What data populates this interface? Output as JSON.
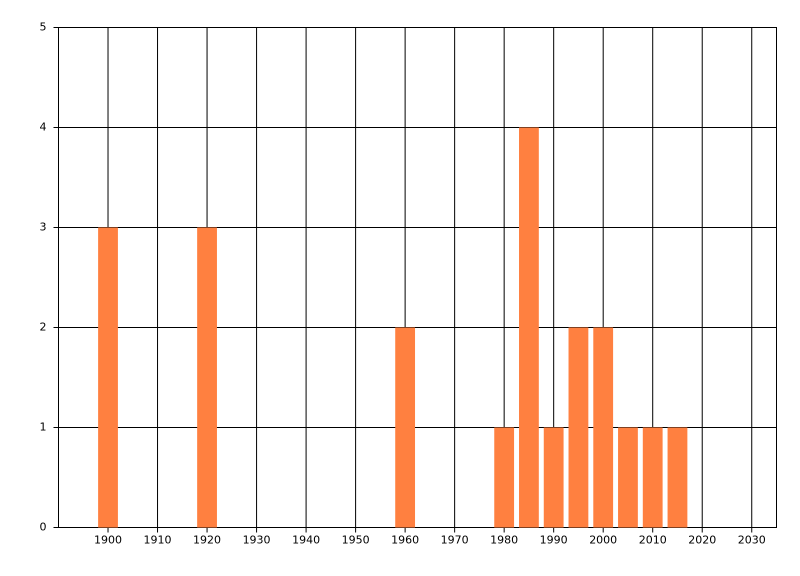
{
  "chart_data": {
    "type": "bar",
    "x": [
      1900,
      1920,
      1960,
      1980,
      1985,
      1990,
      1995,
      2000,
      2005,
      2010,
      2015
    ],
    "values": [
      3,
      3,
      2,
      1,
      4,
      1,
      2,
      2,
      1,
      1,
      1
    ],
    "color": "#ff8040",
    "xlim": [
      1890,
      2035
    ],
    "xticks": [
      1900,
      1910,
      1920,
      1930,
      1940,
      1950,
      1960,
      1970,
      1980,
      1990,
      2000,
      2010,
      2020,
      2030
    ],
    "ylim": [
      0,
      5
    ],
    "yticks": [
      0,
      1,
      2,
      3,
      4,
      5
    ],
    "grid": true
  }
}
